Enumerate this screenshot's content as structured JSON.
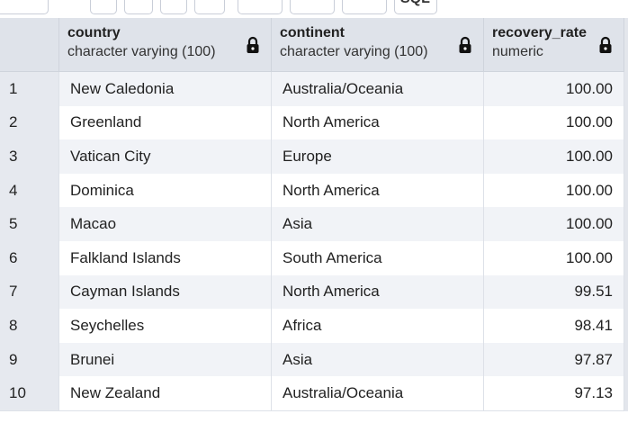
{
  "toolbar": {
    "sql_button": "SQL"
  },
  "table": {
    "columns": [
      {
        "name": "country",
        "type": "character varying (100)"
      },
      {
        "name": "continent",
        "type": "character varying (100)"
      },
      {
        "name": "recovery_rate",
        "type": "numeric"
      }
    ],
    "rows": [
      [
        "1",
        "New Caledonia",
        "Australia/Oceania",
        "100.00"
      ],
      [
        "2",
        "Greenland",
        "North America",
        "100.00"
      ],
      [
        "3",
        "Vatican City",
        "Europe",
        "100.00"
      ],
      [
        "4",
        "Dominica",
        "North America",
        "100.00"
      ],
      [
        "5",
        "Macao",
        "Asia",
        "100.00"
      ],
      [
        "6",
        "Falkland Islands",
        "South America",
        "100.00"
      ],
      [
        "7",
        "Cayman Islands",
        "North America",
        "99.51"
      ],
      [
        "8",
        "Seychelles",
        "Africa",
        "98.41"
      ],
      [
        "9",
        "Brunei",
        "Asia",
        "97.87"
      ],
      [
        "10",
        "New Zealand",
        "Australia/Oceania",
        "97.13"
      ]
    ]
  }
}
